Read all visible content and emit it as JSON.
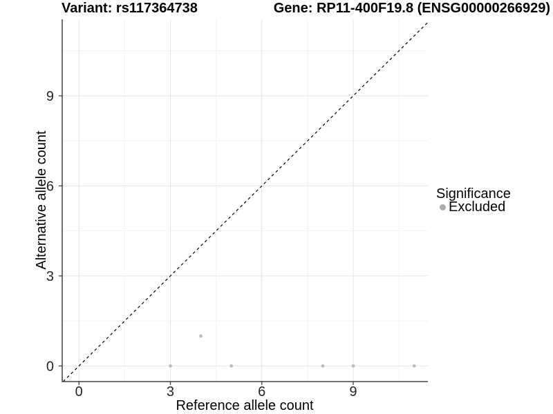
{
  "titles": {
    "variant": "Variant: rs117364738",
    "gene": "Gene: RP11-400F19.8 (ENSG00000266929)"
  },
  "chart_data": {
    "type": "scatter",
    "xlabel": "Reference allele count",
    "ylabel": "Alternative allele count",
    "xlim": [
      -0.55,
      11.45
    ],
    "ylim": [
      -0.52,
      11.55
    ],
    "x_ticks": [
      0,
      3,
      6,
      9
    ],
    "y_ticks": [
      0,
      3,
      6,
      9
    ],
    "x_minor_ticks": [
      1.5,
      4.5,
      7.5,
      10.5
    ],
    "y_minor_ticks": [
      1.5,
      4.5,
      7.5,
      10.5
    ],
    "grid": {
      "major_color": "#e4e4e4",
      "minor_color": "#f2f2f2"
    },
    "axis_line_color": "#404040",
    "identity_line": {
      "style": "dashed",
      "color": "#000000",
      "slope": 1,
      "intercept": 0
    },
    "series": [
      {
        "name": "Excluded",
        "color": "#bdbdbd",
        "points": [
          [
            3,
            0
          ],
          [
            4,
            1
          ],
          [
            5,
            0
          ],
          [
            8,
            0
          ],
          [
            9,
            0
          ],
          [
            11,
            0
          ]
        ]
      }
    ],
    "legend": {
      "title": "Significance",
      "position": "right",
      "items": [
        {
          "label": "Excluded",
          "color": "#acacac"
        }
      ]
    }
  }
}
